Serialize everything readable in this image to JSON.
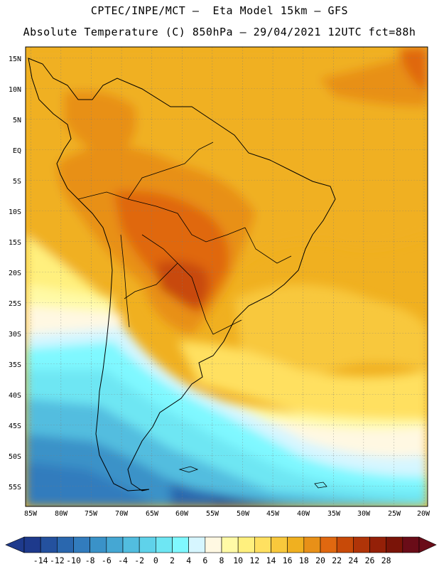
{
  "header": {
    "line1": "CPTEC/INPE/MCT —  Eta Model 15km — GFS",
    "line2": "Absolute Temperature (C) 850hPa — 29/04/2021 12UTC fct=88h"
  },
  "axes": {
    "lat_labels": [
      "15N",
      "10N",
      "5N",
      "EQ",
      "5S",
      "10S",
      "15S",
      "20S",
      "25S",
      "30S",
      "35S",
      "40S",
      "45S",
      "50S",
      "55S"
    ],
    "lon_labels": [
      "85W",
      "80W",
      "75W",
      "70W",
      "65W",
      "60W",
      "55W",
      "50W",
      "45W",
      "40W",
      "35W",
      "30W",
      "25W",
      "20W"
    ]
  },
  "colorbar": {
    "ticks": [
      "-14",
      "-12",
      "-10",
      "-8",
      "-6",
      "-4",
      "-2",
      "0",
      "2",
      "4",
      "6",
      "8",
      "10",
      "12",
      "14",
      "16",
      "18",
      "20",
      "22",
      "24",
      "26",
      "28"
    ],
    "colors": [
      "#1e3a8c",
      "#24519e",
      "#2a67ae",
      "#327cbd",
      "#3a92c8",
      "#45a7d3",
      "#52bddf",
      "#5fd2ea",
      "#6ee6f3",
      "#7ff8ff",
      "#d6f6ff",
      "#fff8e2",
      "#fffaa6",
      "#fff07e",
      "#ffe060",
      "#f8c83c",
      "#f0b020",
      "#e89018",
      "#e06810",
      "#c84a08",
      "#b03408",
      "#942008",
      "#7a1408",
      "#6a0c18"
    ]
  }
}
